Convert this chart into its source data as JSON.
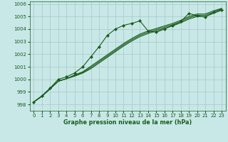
{
  "title": "Graphe pression niveau de la mer (hPa)",
  "background_color": "#c8e8e8",
  "grid_color": "#a8c8c8",
  "line_color": "#1a5c1a",
  "marker_color": "#1a5c1a",
  "xlim": [
    -0.5,
    23.5
  ],
  "ylim": [
    997.5,
    1006.2
  ],
  "yticks": [
    998,
    999,
    1000,
    1001,
    1002,
    1003,
    1004,
    1005,
    1006
  ],
  "xticks": [
    0,
    1,
    2,
    3,
    4,
    5,
    6,
    7,
    8,
    9,
    10,
    11,
    12,
    13,
    14,
    15,
    16,
    17,
    18,
    19,
    20,
    21,
    22,
    23
  ],
  "peak_series": [
    998.2,
    998.7,
    999.3,
    1000.0,
    1000.2,
    1000.5,
    1001.0,
    1001.8,
    1002.6,
    1003.5,
    1004.0,
    1004.3,
    1004.45,
    1004.65,
    1003.85,
    1003.75,
    1004.0,
    1004.3,
    1004.6,
    1005.25,
    1005.05,
    1004.95,
    1005.35,
    1005.55
  ],
  "linear1": [
    998.2,
    998.65,
    999.25,
    999.85,
    1000.05,
    1000.25,
    1000.5,
    1000.85,
    1001.3,
    1001.75,
    1002.2,
    1002.65,
    1003.05,
    1003.4,
    1003.65,
    1003.85,
    1004.05,
    1004.25,
    1004.5,
    1004.8,
    1005.0,
    1005.0,
    1005.25,
    1005.5
  ],
  "linear2": [
    998.2,
    998.65,
    999.25,
    999.85,
    1000.05,
    1000.3,
    1000.55,
    1000.95,
    1001.4,
    1001.85,
    1002.3,
    1002.75,
    1003.15,
    1003.5,
    1003.75,
    1003.95,
    1004.15,
    1004.35,
    1004.6,
    1004.9,
    1005.1,
    1005.1,
    1005.35,
    1005.6
  ],
  "linear3": [
    998.2,
    998.65,
    999.25,
    999.85,
    1000.05,
    1000.35,
    1000.6,
    1001.05,
    1001.5,
    1001.95,
    1002.4,
    1002.85,
    1003.25,
    1003.6,
    1003.85,
    1004.05,
    1004.25,
    1004.45,
    1004.7,
    1005.0,
    1005.2,
    1005.2,
    1005.45,
    1005.65
  ]
}
